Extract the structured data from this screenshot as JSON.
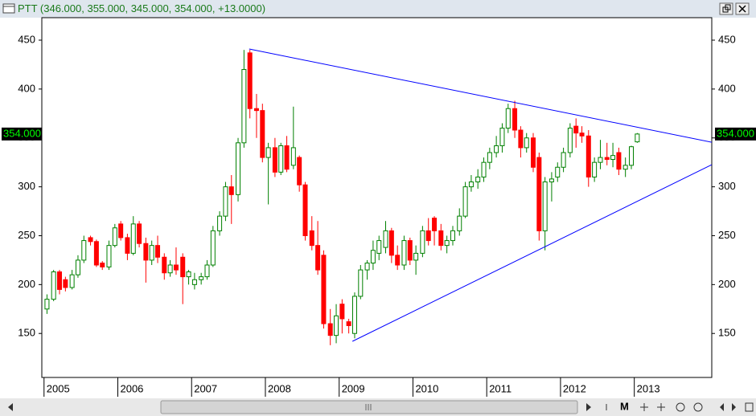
{
  "chart_data": {
    "type": "candlestick",
    "title": "PTT (346.000, 355.000, 345.000, 354.000, +13.0000)",
    "toolbar_label": "M",
    "x": [
      2005.04,
      2005.13,
      2005.21,
      2005.29,
      2005.38,
      2005.46,
      2005.54,
      2005.63,
      2005.71,
      2005.79,
      2005.88,
      2005.96,
      2006.04,
      2006.13,
      2006.21,
      2006.29,
      2006.38,
      2006.46,
      2006.54,
      2006.63,
      2006.71,
      2006.79,
      2006.88,
      2006.96,
      2007.04,
      2007.13,
      2007.21,
      2007.29,
      2007.38,
      2007.46,
      2007.54,
      2007.63,
      2007.71,
      2007.79,
      2007.88,
      2007.96,
      2008.04,
      2008.13,
      2008.21,
      2008.29,
      2008.38,
      2008.46,
      2008.54,
      2008.63,
      2008.71,
      2008.79,
      2008.88,
      2008.96,
      2009.04,
      2009.13,
      2009.21,
      2009.29,
      2009.38,
      2009.46,
      2009.54,
      2009.63,
      2009.71,
      2009.79,
      2009.88,
      2009.96,
      2010.04,
      2010.13,
      2010.21,
      2010.29,
      2010.38,
      2010.46,
      2010.54,
      2010.63,
      2010.71,
      2010.79,
      2010.88,
      2010.96,
      2011.04,
      2011.13,
      2011.21,
      2011.29,
      2011.38,
      2011.46,
      2011.54,
      2011.63,
      2011.71,
      2011.79,
      2011.88,
      2011.96,
      2012.04,
      2012.13,
      2012.21,
      2012.29,
      2012.38,
      2012.46,
      2012.54,
      2012.63,
      2012.71,
      2012.79,
      2012.88,
      2012.96,
      2013.04
    ],
    "open": [
      175,
      185,
      213,
      205,
      197,
      210,
      225,
      248,
      244,
      222,
      218,
      240,
      262,
      248,
      232,
      262,
      242,
      225,
      240,
      228,
      212,
      220,
      228,
      208,
      200,
      205,
      208,
      220,
      255,
      270,
      300,
      292,
      345,
      437,
      380,
      378,
      330,
      340,
      315,
      342,
      322,
      330,
      302,
      255,
      240,
      230,
      160,
      148,
      180,
      162,
      150,
      188,
      215,
      222,
      232,
      238,
      255,
      230,
      220,
      245,
      225,
      232,
      255,
      268,
      255,
      240,
      245,
      255,
      270,
      300,
      305,
      310,
      325,
      335,
      342,
      360,
      380,
      358,
      340,
      350,
      330,
      255,
      305,
      310,
      320,
      335,
      362,
      355,
      352,
      310,
      325,
      330,
      328,
      335,
      318,
      322,
      346
    ],
    "high": [
      190,
      215,
      215,
      208,
      215,
      230,
      250,
      250,
      246,
      224,
      245,
      262,
      265,
      252,
      270,
      265,
      248,
      245,
      250,
      232,
      225,
      238,
      232,
      215,
      212,
      212,
      225,
      260,
      275,
      305,
      312,
      350,
      440,
      440,
      395,
      385,
      345,
      350,
      345,
      352,
      382,
      332,
      305,
      270,
      265,
      235,
      175,
      180,
      185,
      165,
      192,
      220,
      225,
      245,
      250,
      265,
      258,
      240,
      250,
      248,
      240,
      260,
      268,
      270,
      262,
      250,
      260,
      278,
      305,
      312,
      318,
      330,
      340,
      352,
      365,
      385,
      388,
      362,
      355,
      355,
      335,
      310,
      315,
      325,
      340,
      365,
      370,
      362,
      358,
      330,
      348,
      345,
      345,
      340,
      330,
      342,
      355
    ],
    "low": [
      170,
      183,
      190,
      193,
      195,
      207,
      222,
      240,
      218,
      215,
      215,
      238,
      245,
      225,
      230,
      238,
      202,
      220,
      222,
      205,
      208,
      210,
      180,
      200,
      195,
      200,
      205,
      218,
      250,
      265,
      262,
      285,
      340,
      370,
      350,
      325,
      282,
      310,
      312,
      315,
      318,
      295,
      245,
      235,
      210,
      155,
      138,
      140,
      150,
      150,
      145,
      185,
      205,
      215,
      225,
      232,
      222,
      215,
      215,
      220,
      210,
      228,
      240,
      240,
      235,
      232,
      240,
      250,
      268,
      295,
      298,
      305,
      318,
      330,
      335,
      355,
      350,
      330,
      335,
      315,
      245,
      235,
      285,
      305,
      315,
      330,
      340,
      345,
      300,
      305,
      318,
      322,
      320,
      312,
      310,
      318,
      345
    ],
    "close": [
      185,
      213,
      195,
      197,
      210,
      225,
      245,
      244,
      220,
      218,
      240,
      258,
      248,
      232,
      262,
      242,
      225,
      240,
      228,
      212,
      220,
      215,
      208,
      213,
      205,
      208,
      220,
      255,
      270,
      300,
      292,
      345,
      420,
      380,
      378,
      330,
      340,
      315,
      342,
      318,
      340,
      302,
      250,
      240,
      215,
      160,
      148,
      168,
      165,
      158,
      188,
      215,
      222,
      235,
      245,
      255,
      230,
      220,
      245,
      225,
      232,
      255,
      245,
      255,
      240,
      245,
      255,
      270,
      300,
      305,
      310,
      325,
      335,
      342,
      360,
      380,
      358,
      340,
      350,
      320,
      255,
      305,
      308,
      320,
      335,
      360,
      355,
      352,
      310,
      325,
      330,
      328,
      332,
      318,
      322,
      341,
      354
    ],
    "up_color": "#008000",
    "down_color": "#ff0000",
    "last_price": {
      "value": 354,
      "label": "354.000"
    },
    "trendlines": [
      {
        "x": [
          2007.78,
          2014.05
        ],
        "y": [
          441,
          345.6
        ],
        "color": "#0000ff"
      },
      {
        "x": [
          2009.18,
          2014.05
        ],
        "y": [
          142,
          322.6
        ],
        "color": "#0000ff"
      }
    ],
    "xlim": [
      2004.97,
      2014.05
    ],
    "ylim": [
      105,
      473
    ],
    "xticks": [
      2005,
      2006,
      2007,
      2008,
      2009,
      2010,
      2011,
      2012,
      2013
    ],
    "yticks": [
      150,
      200,
      250,
      300,
      350,
      400,
      450
    ]
  }
}
